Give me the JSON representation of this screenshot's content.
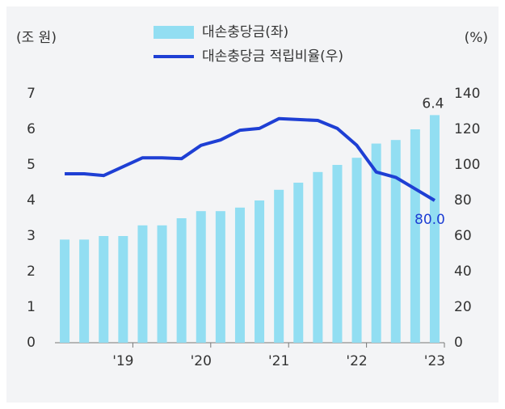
{
  "chart_data": {
    "type": "bar",
    "y_label": "(조 원)",
    "y2_label": "(%)",
    "categories": [
      null,
      null,
      null,
      "'19",
      null,
      null,
      null,
      "'20",
      null,
      null,
      null,
      "'21",
      null,
      null,
      null,
      "'22",
      null,
      null,
      null,
      "'23"
    ],
    "series": [
      {
        "name": "대손충당금(좌)",
        "type": "bar",
        "color": "#92def2",
        "axis": "y",
        "values": [
          2.9,
          2.9,
          3.0,
          3.0,
          3.3,
          3.3,
          3.5,
          3.7,
          3.7,
          3.8,
          4.0,
          4.3,
          4.5,
          4.8,
          5.0,
          5.2,
          5.6,
          5.7,
          6.0,
          6.4
        ]
      },
      {
        "name": "대손충당금 적립비율(우)",
        "type": "line",
        "color": "#1e3fd4",
        "axis": "y2",
        "values": [
          95,
          95,
          94,
          99,
          104,
          104,
          103.5,
          111,
          114,
          119.5,
          120.5,
          126,
          125.5,
          125,
          120.5,
          111,
          96,
          93,
          86.5,
          80
        ],
        "value_labels": [
          null,
          null,
          null,
          null,
          null,
          null,
          null,
          null,
          null,
          null,
          null,
          null,
          null,
          null,
          null,
          null,
          null,
          null,
          null,
          "80.0"
        ]
      }
    ],
    "ylim": [
      0,
      7
    ],
    "yticks": [
      0,
      1,
      2,
      3,
      4,
      5,
      6,
      7
    ],
    "y2lim": [
      0,
      140
    ],
    "y2ticks": [
      0,
      20,
      40,
      60,
      80,
      100,
      120,
      140
    ]
  }
}
